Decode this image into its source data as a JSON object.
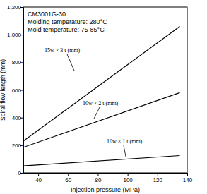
{
  "chart_data": {
    "type": "line",
    "title": "CM3001G-30",
    "annotations": [
      "Molding temperature: 280°C",
      "Mold temperature: 75-85°C"
    ],
    "x_label": "Injection pressure (MPa)",
    "y_label": "Spiral flow length (mm)",
    "x": [
      30,
      135
    ],
    "series": [
      {
        "name": "15w × 3 t (mm)",
        "color": "#000000",
        "values": [
          230,
          1060
        ]
      },
      {
        "name": "10w × 2 t (mm)",
        "color": "#000000",
        "values": [
          185,
          580
        ]
      },
      {
        "name": "10w × 1 t (mm)",
        "color": "#000000",
        "values": [
          50,
          125
        ]
      }
    ],
    "xlim": [
      30,
      140
    ],
    "xticks": [
      40,
      60,
      80,
      100,
      120,
      140
    ],
    "ylim": [
      0,
      1200
    ],
    "yticks": [
      0,
      200,
      400,
      600,
      800,
      {
        "value": 1000,
        "label": "1,000"
      },
      {
        "value": 1200,
        "label": "1,200"
      }
    ],
    "grid": false
  }
}
